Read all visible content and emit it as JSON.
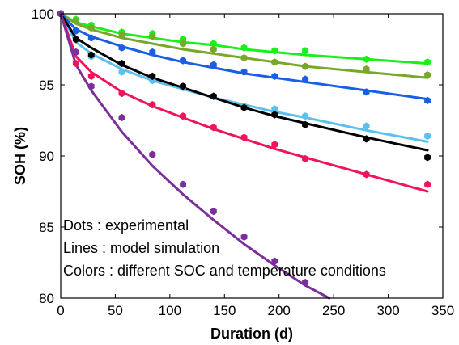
{
  "chart_data": {
    "type": "scatter",
    "xlabel": "Duration (d)",
    "ylabel": "SOH (%)",
    "xlim": [
      0,
      350
    ],
    "ylim": [
      80,
      100
    ],
    "xticks": [
      0,
      50,
      100,
      150,
      200,
      250,
      300,
      350
    ],
    "yticks": [
      80,
      85,
      90,
      95,
      100
    ],
    "grid": false,
    "annotations": [
      "Dots : experimental",
      "Lines : model simulation",
      "Colors : different SOC and temperature conditions"
    ],
    "series": [
      {
        "color": "#19f019",
        "points": [
          [
            0,
            100
          ],
          [
            14,
            99.6
          ],
          [
            28,
            99.2
          ],
          [
            56,
            98.7
          ],
          [
            84,
            98.6
          ],
          [
            112,
            98.2
          ],
          [
            140,
            97.9
          ],
          [
            168,
            97.6
          ],
          [
            196,
            97.4
          ],
          [
            224,
            97.4
          ],
          [
            280,
            96.8
          ],
          [
            336,
            96.6
          ]
        ],
        "model": [
          [
            0,
            100
          ],
          [
            14,
            99.4
          ],
          [
            28,
            99.1
          ],
          [
            56,
            98.6
          ],
          [
            84,
            98.3
          ],
          [
            112,
            98.0
          ],
          [
            140,
            97.8
          ],
          [
            168,
            97.5
          ],
          [
            196,
            97.3
          ],
          [
            224,
            97.1
          ],
          [
            280,
            96.8
          ],
          [
            336,
            96.5
          ]
        ]
      },
      {
        "color": "#78a82a",
        "points": [
          [
            0,
            100
          ],
          [
            14,
            99.5
          ],
          [
            28,
            99.0
          ],
          [
            56,
            98.5
          ],
          [
            84,
            98.4
          ],
          [
            112,
            97.9
          ],
          [
            140,
            97.5
          ],
          [
            168,
            96.9
          ],
          [
            196,
            96.6
          ],
          [
            224,
            96.3
          ],
          [
            280,
            96.1
          ],
          [
            336,
            95.7
          ]
        ],
        "model": [
          [
            0,
            100
          ],
          [
            14,
            99.3
          ],
          [
            28,
            98.9
          ],
          [
            56,
            98.3
          ],
          [
            84,
            97.9
          ],
          [
            112,
            97.5
          ],
          [
            140,
            97.2
          ],
          [
            168,
            96.9
          ],
          [
            196,
            96.6
          ],
          [
            224,
            96.3
          ],
          [
            280,
            95.9
          ],
          [
            336,
            95.5
          ]
        ]
      },
      {
        "color": "#1a5ee6",
        "points": [
          [
            0,
            100
          ],
          [
            14,
            98.8
          ],
          [
            28,
            98.3
          ],
          [
            56,
            97.6
          ],
          [
            84,
            97.3
          ],
          [
            112,
            96.7
          ],
          [
            140,
            96.4
          ],
          [
            168,
            95.9
          ],
          [
            196,
            95.6
          ],
          [
            224,
            95.4
          ],
          [
            280,
            94.5
          ],
          [
            336,
            93.9
          ]
        ],
        "model": [
          [
            0,
            100
          ],
          [
            14,
            98.9
          ],
          [
            28,
            98.4
          ],
          [
            56,
            97.7
          ],
          [
            84,
            97.1
          ],
          [
            112,
            96.6
          ],
          [
            140,
            96.2
          ],
          [
            168,
            95.8
          ],
          [
            196,
            95.5
          ],
          [
            224,
            95.2
          ],
          [
            280,
            94.6
          ],
          [
            336,
            94.0
          ]
        ]
      },
      {
        "color": "#5cc0ee",
        "points": [
          [
            0,
            100
          ],
          [
            14,
            97.3
          ],
          [
            28,
            97.0
          ],
          [
            56,
            95.9
          ],
          [
            84,
            95.3
          ],
          [
            112,
            94.8
          ],
          [
            140,
            94.2
          ],
          [
            168,
            93.5
          ],
          [
            196,
            93.3
          ],
          [
            224,
            92.8
          ],
          [
            280,
            92.1
          ],
          [
            336,
            91.4
          ]
        ],
        "model": [
          [
            0,
            100
          ],
          [
            14,
            98.0
          ],
          [
            28,
            97.2
          ],
          [
            56,
            96.1
          ],
          [
            84,
            95.3
          ],
          [
            112,
            94.7
          ],
          [
            140,
            94.1
          ],
          [
            168,
            93.6
          ],
          [
            196,
            93.1
          ],
          [
            224,
            92.7
          ],
          [
            280,
            91.8
          ],
          [
            336,
            91.0
          ]
        ]
      },
      {
        "color": "#000000",
        "points": [
          [
            0,
            100
          ],
          [
            14,
            98.2
          ],
          [
            28,
            97.1
          ],
          [
            56,
            96.5
          ],
          [
            84,
            95.6
          ],
          [
            112,
            94.9
          ],
          [
            140,
            94.2
          ],
          [
            168,
            93.4
          ],
          [
            196,
            92.9
          ],
          [
            224,
            92.2
          ],
          [
            280,
            91.2
          ],
          [
            336,
            89.9
          ]
        ],
        "model": [
          [
            0,
            100
          ],
          [
            14,
            98.3
          ],
          [
            28,
            97.6
          ],
          [
            56,
            96.4
          ],
          [
            84,
            95.5
          ],
          [
            112,
            94.8
          ],
          [
            140,
            94.1
          ],
          [
            168,
            93.4
          ],
          [
            196,
            92.8
          ],
          [
            224,
            92.3
          ],
          [
            280,
            91.3
          ],
          [
            336,
            90.4
          ]
        ]
      },
      {
        "color": "#f0145a",
        "points": [
          [
            0,
            100
          ],
          [
            14,
            96.5
          ],
          [
            28,
            95.6
          ],
          [
            56,
            94.4
          ],
          [
            84,
            93.6
          ],
          [
            112,
            92.8
          ],
          [
            140,
            92.0
          ],
          [
            168,
            91.3
          ],
          [
            196,
            90.8
          ],
          [
            224,
            89.8
          ],
          [
            280,
            88.7
          ],
          [
            336,
            88.0
          ]
        ],
        "model": [
          [
            0,
            100
          ],
          [
            14,
            97.0
          ],
          [
            28,
            95.9
          ],
          [
            56,
            94.5
          ],
          [
            84,
            93.5
          ],
          [
            112,
            92.7
          ],
          [
            140,
            91.9
          ],
          [
            168,
            91.2
          ],
          [
            196,
            90.5
          ],
          [
            224,
            89.9
          ],
          [
            280,
            88.7
          ],
          [
            336,
            87.5
          ]
        ]
      },
      {
        "color": "#7a2f9c",
        "points": [
          [
            0,
            100
          ],
          [
            14,
            97.3
          ],
          [
            28,
            94.9
          ],
          [
            56,
            92.7
          ],
          [
            84,
            90.1
          ],
          [
            112,
            88.0
          ],
          [
            140,
            86.1
          ],
          [
            168,
            84.3
          ],
          [
            196,
            82.6
          ],
          [
            224,
            81.1
          ]
        ],
        "model": [
          [
            0,
            100
          ],
          [
            14,
            96.4
          ],
          [
            28,
            94.6
          ],
          [
            56,
            91.7
          ],
          [
            84,
            89.3
          ],
          [
            112,
            87.3
          ],
          [
            140,
            85.5
          ],
          [
            168,
            83.8
          ],
          [
            196,
            82.3
          ],
          [
            224,
            80.9
          ],
          [
            246,
            80.0
          ]
        ]
      }
    ]
  }
}
